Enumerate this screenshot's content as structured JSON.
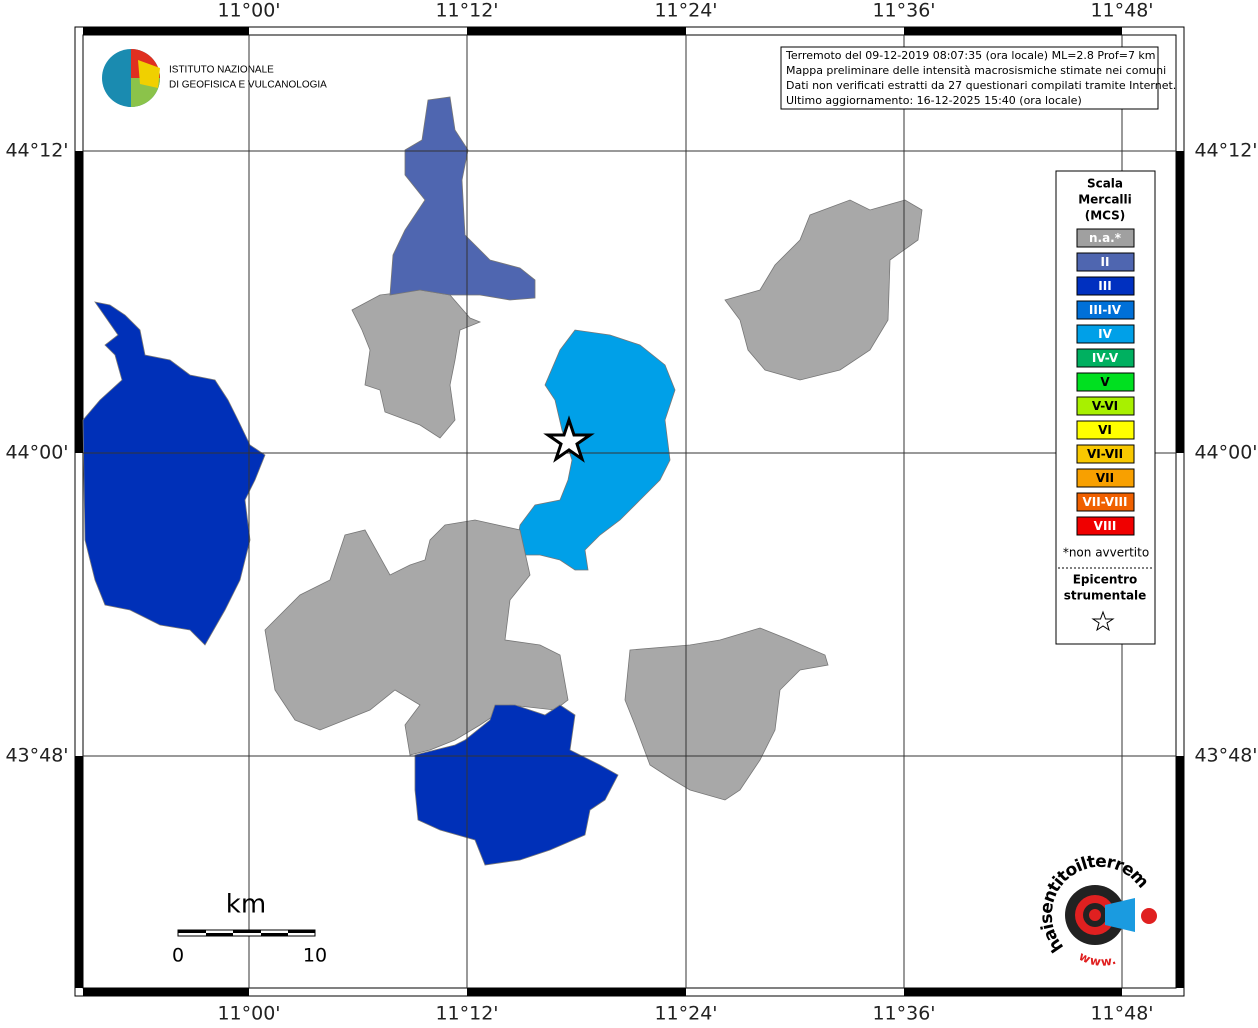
{
  "map": {
    "lon_labels": [
      "11°00'",
      "11°12'",
      "11°24'",
      "11°36'",
      "11°48'"
    ],
    "lat_labels": [
      "44°12'",
      "44°00'",
      "43°48'"
    ]
  },
  "logo": {
    "line1": "ISTITUTO NAZIONALE",
    "line2": "DI GEOFISICA E VULCANOLOGIA"
  },
  "info": [
    "Terremoto del 09-12-2019 08:07:35 (ora locale) ML=2.8 Prof=7 km",
    "Mappa preliminare delle intensità macrosismiche stimate nei comuni",
    "Dati non verificati estratti da 27 questionari compilati tramite Internet.",
    "Ultimo aggiornamento: 16-12-2025 15:40 (ora locale)"
  ],
  "legend": {
    "title": [
      "Scala",
      "Mercalli",
      "(MCS)"
    ],
    "items": [
      {
        "label": "n.a.*",
        "color": "#a0a0a0"
      },
      {
        "label": "II",
        "color": "#4f66b0"
      },
      {
        "label": "III",
        "color": "#0030c0"
      },
      {
        "label": "III-IV",
        "color": "#0070d8"
      },
      {
        "label": "IV",
        "color": "#00a0e8"
      },
      {
        "label": "IV-V",
        "color": "#00b060"
      },
      {
        "label": "V",
        "color": "#00e020"
      },
      {
        "label": "V-VI",
        "color": "#a8f000"
      },
      {
        "label": "VI",
        "color": "#ffff00"
      },
      {
        "label": "VI-VII",
        "color": "#f8c800"
      },
      {
        "label": "VII",
        "color": "#f8a000"
      },
      {
        "label": "VII-VIII",
        "color": "#f06000"
      },
      {
        "label": "VIII",
        "color": "#f00000"
      }
    ],
    "note": "*non avvertito",
    "epicenter": [
      "Epicentro",
      "strumentale"
    ]
  },
  "scale": {
    "unit": "km",
    "ticks": [
      0,
      10
    ]
  },
  "site": {
    "prefix": "www.",
    "name": "haisentitoilterremoto.it"
  }
}
